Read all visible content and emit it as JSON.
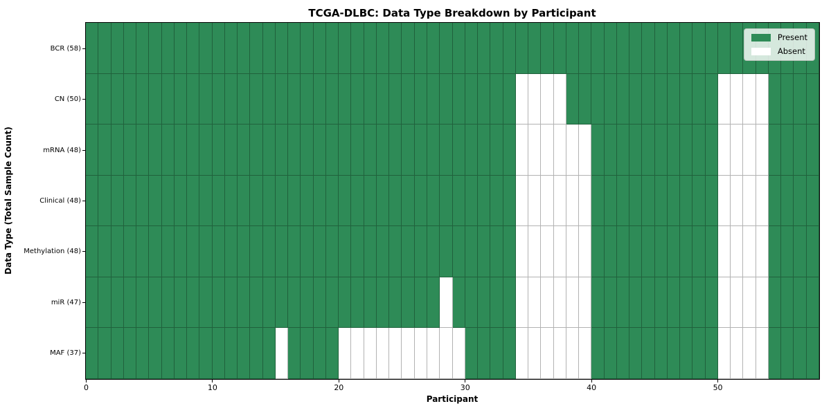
{
  "chart_data": {
    "type": "heatmap",
    "title": "TCGA-DLBC: Data Type Breakdown by Participant",
    "xlabel": "Participant",
    "ylabel": "Data Type (Total Sample Count)",
    "n_participants": 58,
    "x_range": [
      0,
      58
    ],
    "grid": true,
    "x_ticks": [
      {
        "value": 0,
        "label": "0"
      },
      {
        "value": 10,
        "label": "10"
      },
      {
        "value": 20,
        "label": "20"
      },
      {
        "value": 30,
        "label": "30"
      },
      {
        "value": 40,
        "label": "40"
      },
      {
        "value": 50,
        "label": "50"
      }
    ],
    "rows": [
      {
        "data_type": "BCR",
        "total_samples": 58,
        "tick_label": "BCR (58)",
        "absent_participants": []
      },
      {
        "data_type": "CN",
        "total_samples": 50,
        "tick_label": "CN (50)",
        "absent_participants": [
          34,
          35,
          36,
          37,
          50,
          51,
          52,
          53
        ]
      },
      {
        "data_type": "mRNA",
        "total_samples": 48,
        "tick_label": "mRNA (48)",
        "absent_participants": [
          34,
          35,
          36,
          37,
          38,
          39,
          50,
          51,
          52,
          53
        ]
      },
      {
        "data_type": "Clinical",
        "total_samples": 48,
        "tick_label": "Clinical (48)",
        "absent_participants": [
          34,
          35,
          36,
          37,
          38,
          39,
          50,
          51,
          52,
          53
        ]
      },
      {
        "data_type": "Methylation",
        "total_samples": 48,
        "tick_label": "Methylation (48)",
        "absent_participants": [
          34,
          35,
          36,
          37,
          38,
          39,
          50,
          51,
          52,
          53
        ]
      },
      {
        "data_type": "miR",
        "total_samples": 47,
        "tick_label": "miR (47)",
        "absent_participants": [
          28,
          34,
          35,
          36,
          37,
          38,
          39,
          50,
          51,
          52,
          53
        ]
      },
      {
        "data_type": "MAF",
        "total_samples": 37,
        "tick_label": "MAF (37)",
        "absent_participants": [
          15,
          20,
          21,
          22,
          23,
          24,
          25,
          26,
          27,
          28,
          29,
          34,
          35,
          36,
          37,
          38,
          39,
          50,
          51,
          52,
          53
        ]
      }
    ],
    "legend": {
      "position": "upper-right",
      "entries": [
        {
          "label": "Present",
          "color": "#2e8b57"
        },
        {
          "label": "Absent",
          "color": "#ffffff"
        }
      ]
    },
    "colors": {
      "present": "#2e8b57",
      "absent": "#ffffff",
      "frame": "#000000"
    }
  }
}
